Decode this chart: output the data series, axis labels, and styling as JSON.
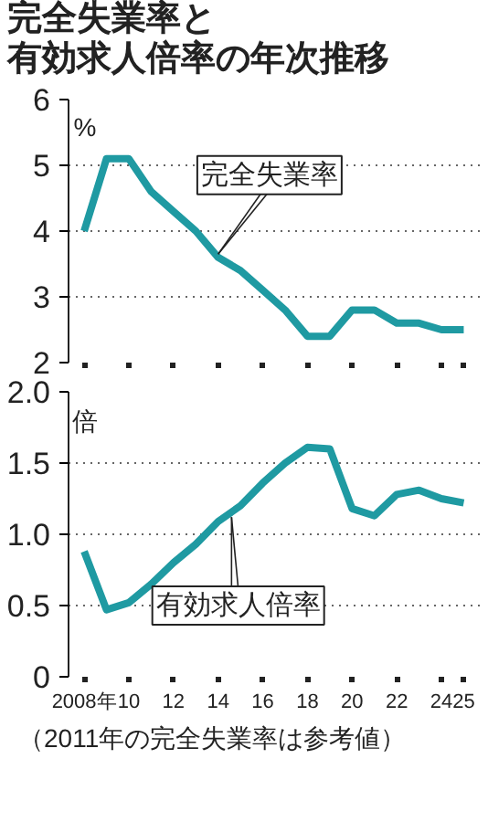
{
  "chart_data": [
    {
      "type": "line",
      "title": "完全失業率と有効求人倍率の年次推移",
      "ylabel": "%",
      "x": [
        2008,
        2009,
        2010,
        2011,
        2012,
        2013,
        2014,
        2015,
        2016,
        2017,
        2018,
        2019,
        2020,
        2021,
        2022,
        2023,
        2024,
        2025
      ],
      "series": [
        {
          "color": "#1f9aa2",
          "values": [
            4.0,
            5.1,
            5.1,
            4.6,
            4.3,
            4.0,
            3.6,
            3.4,
            3.1,
            2.8,
            2.4,
            2.4,
            2.8,
            2.8,
            2.6,
            2.6,
            2.5,
            2.5
          ]
        }
      ],
      "annotations": [
        {
          "text": "完全失業率",
          "x": 2014,
          "y": 3.65
        }
      ],
      "xlim": [
        2007.3,
        2025.8
      ],
      "ylim": [
        2,
        6
      ],
      "yticks": [
        2,
        3,
        4,
        5,
        6
      ],
      "xticks": [
        {
          "value": 2008,
          "label": null
        },
        {
          "value": 2010,
          "label": null
        },
        {
          "value": 2012,
          "label": null
        },
        {
          "value": 2014,
          "label": null
        },
        {
          "value": 2016,
          "label": null
        },
        {
          "value": 2018,
          "label": null
        },
        {
          "value": 2020,
          "label": null
        },
        {
          "value": 2022,
          "label": null
        },
        {
          "value": 2024,
          "label": null
        },
        {
          "value": 2025,
          "label": null
        }
      ],
      "tick_labels": "y",
      "grid": "y",
      "line_style": "solid",
      "marker": "none"
    },
    {
      "type": "line",
      "ylabel": "倍",
      "x": [
        2008,
        2009,
        2010,
        2011,
        2012,
        2013,
        2014,
        2015,
        2016,
        2017,
        2018,
        2019,
        2020,
        2021,
        2022,
        2023,
        2024,
        2025
      ],
      "series": [
        {
          "color": "#1f9aa2",
          "values": [
            0.88,
            0.47,
            0.52,
            0.65,
            0.8,
            0.93,
            1.09,
            1.2,
            1.36,
            1.5,
            1.61,
            1.6,
            1.18,
            1.13,
            1.28,
            1.31,
            1.25,
            1.22
          ]
        }
      ],
      "annotations": [
        {
          "text": "有効求人倍率",
          "x": 2014.6,
          "y": 1.12
        },
        "（2011年の完全失業率は参考値）"
      ],
      "xlim": [
        2007.3,
        2025.8
      ],
      "ylim": [
        0,
        2.0
      ],
      "yticks": [
        0,
        0.5,
        {
          "value": 1.0,
          "label": "1.0"
        },
        1.5,
        {
          "value": 2.0,
          "label": "2.0"
        }
      ],
      "xticks": [
        {
          "value": 2008,
          "label": "2008年"
        },
        {
          "value": 2010,
          "label": "10"
        },
        {
          "value": 2012,
          "label": "12"
        },
        {
          "value": 2014,
          "label": "14"
        },
        {
          "value": 2016,
          "label": "16"
        },
        {
          "value": 2018,
          "label": "18"
        },
        {
          "value": 2020,
          "label": "20"
        },
        {
          "value": 2022,
          "label": "22"
        },
        {
          "value": 2024,
          "label": "24"
        },
        {
          "value": 2025,
          "label": "25"
        }
      ],
      "grid": "y",
      "line_style": "solid",
      "marker": "none"
    }
  ]
}
